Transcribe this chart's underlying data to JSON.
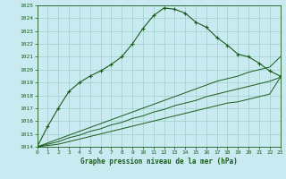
{
  "title": "Graphe pression niveau de la mer (hPa)",
  "bg_color": "#c8eaf0",
  "grid_color": "#9ecfca",
  "line_color": "#1a5c1a",
  "x_values": [
    0,
    1,
    2,
    3,
    4,
    5,
    6,
    7,
    8,
    9,
    10,
    11,
    12,
    13,
    14,
    15,
    16,
    17,
    18,
    19,
    20,
    21,
    22,
    23
  ],
  "series_main": [
    1014.0,
    1015.6,
    1017.0,
    1018.3,
    1019.0,
    1019.5,
    1019.9,
    1020.4,
    1021.0,
    1022.0,
    1023.2,
    1024.2,
    1024.8,
    1024.7,
    1024.4,
    1023.7,
    1023.3,
    1022.5,
    1021.9,
    1021.2,
    1021.0,
    1020.5,
    1019.9,
    1019.5
  ],
  "series2": [
    1014.0,
    1014.3,
    1014.6,
    1014.9,
    1015.2,
    1015.5,
    1015.8,
    1016.1,
    1016.4,
    1016.7,
    1017.0,
    1017.3,
    1017.6,
    1017.9,
    1018.2,
    1018.5,
    1018.8,
    1019.1,
    1019.3,
    1019.5,
    1019.8,
    1020.0,
    1020.2,
    1021.0
  ],
  "series3": [
    1014.0,
    1014.2,
    1014.4,
    1014.7,
    1014.9,
    1015.2,
    1015.4,
    1015.7,
    1015.9,
    1016.2,
    1016.4,
    1016.7,
    1016.9,
    1017.2,
    1017.4,
    1017.6,
    1017.9,
    1018.1,
    1018.3,
    1018.5,
    1018.7,
    1018.9,
    1019.1,
    1019.4
  ],
  "series4": [
    1014.0,
    1014.1,
    1014.2,
    1014.4,
    1014.6,
    1014.8,
    1015.0,
    1015.2,
    1015.4,
    1015.6,
    1015.8,
    1016.0,
    1016.2,
    1016.4,
    1016.6,
    1016.8,
    1017.0,
    1017.2,
    1017.4,
    1017.5,
    1017.7,
    1017.9,
    1018.1,
    1019.4
  ],
  "ylim": [
    1014,
    1025
  ],
  "yticks": [
    1014,
    1015,
    1016,
    1017,
    1018,
    1019,
    1020,
    1021,
    1022,
    1023,
    1024,
    1025
  ],
  "xlim": [
    0,
    23
  ],
  "figsize": [
    3.2,
    2.0
  ],
  "dpi": 100
}
